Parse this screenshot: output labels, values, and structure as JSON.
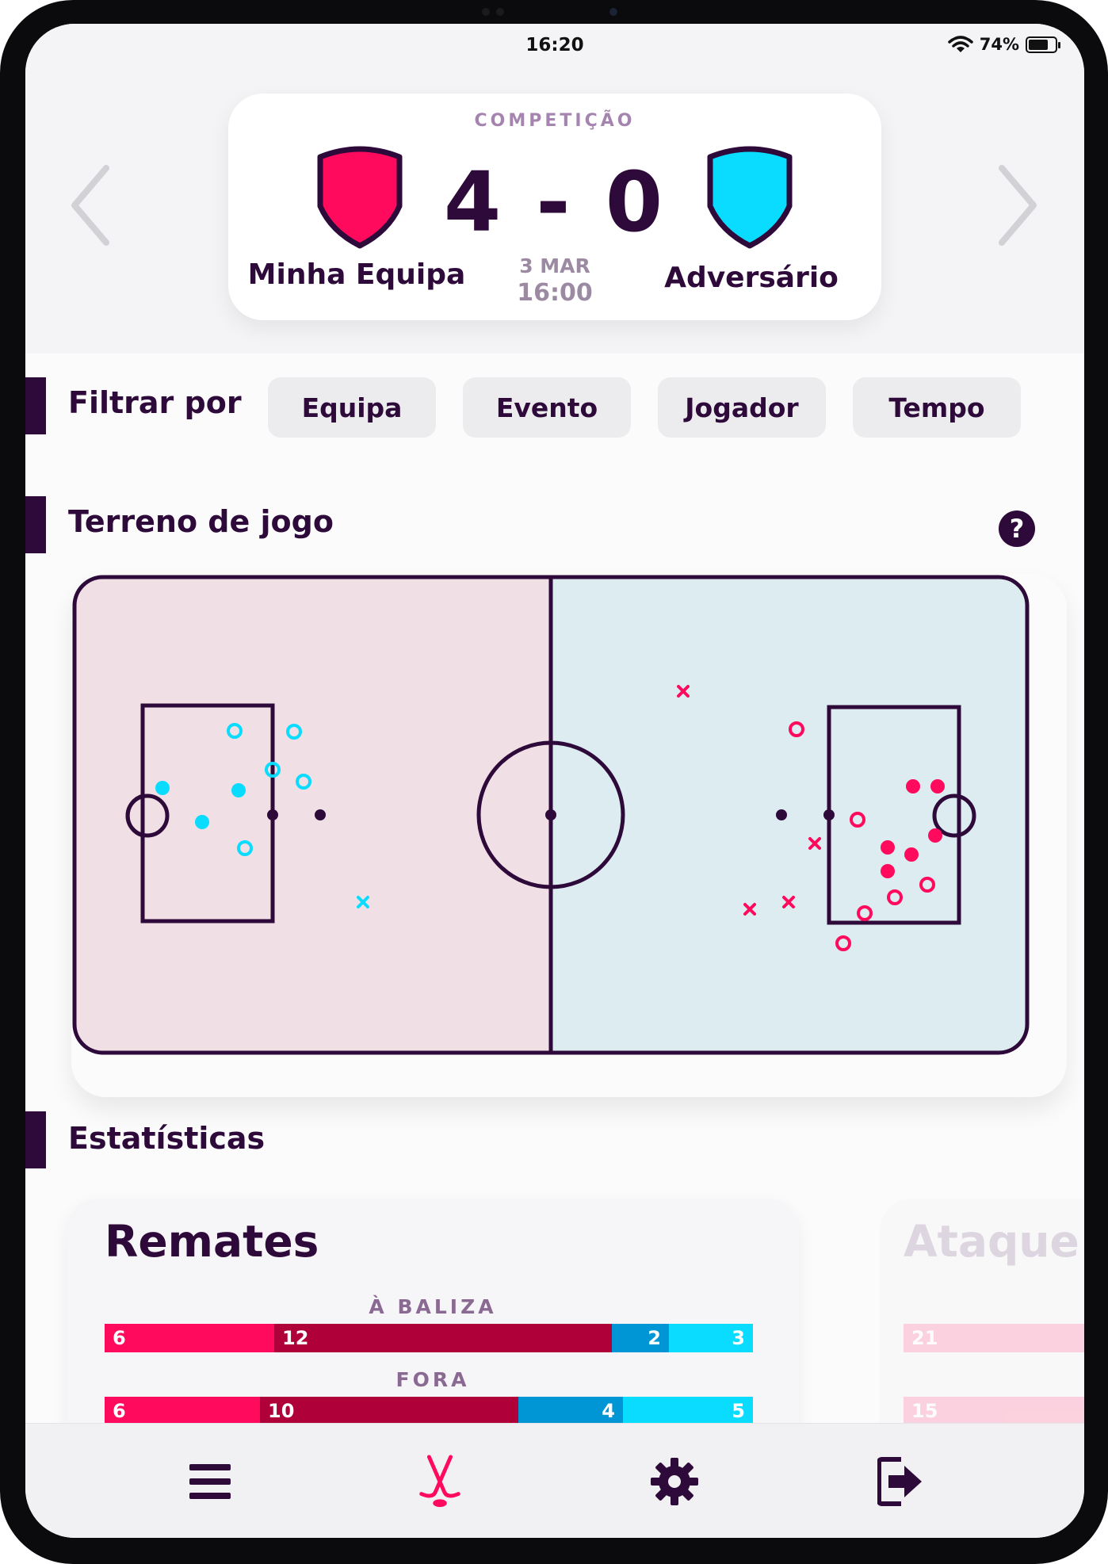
{
  "status_bar": {
    "time": "16:20",
    "battery": "74%",
    "battery_level": 0.74
  },
  "match": {
    "competition": "COMPETIÇÃO",
    "score": "4 - 0",
    "home_team": "Minha Equipa",
    "away_team": "Adversário",
    "date": "3 MAR",
    "time": "16:00",
    "home_color": "#ff0a5c",
    "away_color": "#0adcff"
  },
  "filters": {
    "title": "Filtrar por",
    "buttons": [
      "Equipa",
      "Evento",
      "Jogador",
      "Tempo"
    ]
  },
  "field": {
    "title": "Terreno de jogo",
    "help_label": "?",
    "home_half_color": "#f0dfe5",
    "away_half_color": "#ddecf0",
    "line_color": "#2e0a3a"
  },
  "stats": {
    "title": "Estatísticas",
    "cards": [
      {
        "title": "Remates",
        "rows": [
          {
            "label": "À BALIZA",
            "values": [
              "6",
              "12",
              "2",
              "3"
            ]
          },
          {
            "label": "FORA",
            "values": [
              "6",
              "10",
              "4",
              "5"
            ]
          }
        ]
      },
      {
        "title": "Ataque",
        "rows": [
          {
            "values": [
              "21"
            ]
          },
          {
            "values": [
              "15"
            ]
          }
        ]
      }
    ],
    "colors": [
      "#ff0a5c",
      "#b0003a",
      "#0096d6",
      "#0adcff"
    ]
  },
  "tab_bar": {
    "items": [
      "menu-icon",
      "hockey-sticks-icon",
      "gear-icon",
      "logout-icon"
    ],
    "active_index": 1,
    "active_color": "#ff0a5c"
  }
}
